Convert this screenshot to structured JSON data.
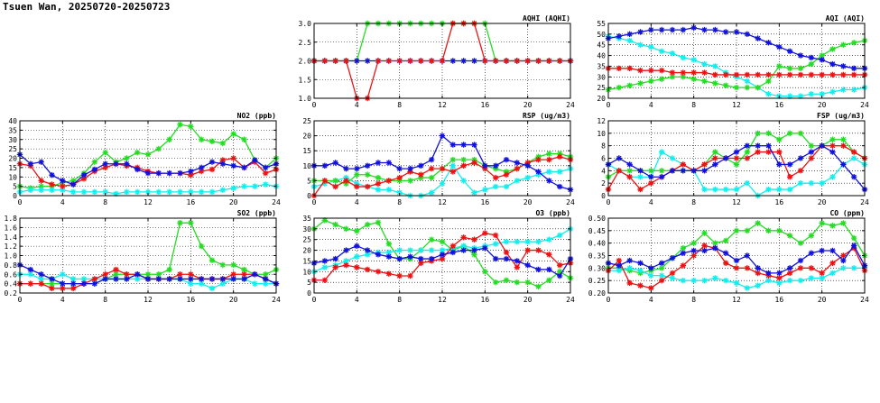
{
  "page": {
    "title": "Tsuen Wan, 20250720-20250723"
  },
  "series_colors": {
    "green": "#22dd22",
    "red": "#ee1111",
    "blue": "#1111dd",
    "cyan": "#11eeee"
  },
  "chart_data": [
    {
      "id": "aqhi",
      "type": "line",
      "title": "AQHI (AQHI)",
      "xlim": [
        0,
        24
      ],
      "xticks": [
        0,
        4,
        8,
        12,
        16,
        20,
        24
      ],
      "ylim": [
        1,
        3
      ],
      "yticks": [
        "1.0",
        "1.5",
        "2.0",
        "2.5",
        "3.0"
      ],
      "grid": true,
      "series": [
        {
          "color": "green",
          "values": [
            2,
            2,
            2,
            2,
            2,
            3,
            3,
            3,
            3,
            3,
            3,
            3,
            3,
            3,
            3,
            3,
            3,
            2,
            2,
            2,
            2,
            2,
            2,
            2,
            2
          ]
        },
        {
          "color": "blue",
          "values": [
            2,
            2,
            2,
            2,
            2,
            2,
            2,
            2,
            2,
            2,
            2,
            2,
            2,
            2,
            2,
            2,
            2,
            2,
            2,
            2,
            2,
            2,
            2,
            2,
            2
          ]
        },
        {
          "color": "red",
          "values": [
            2,
            2,
            2,
            2,
            1,
            1,
            2,
            2,
            2,
            2,
            2,
            2,
            2,
            3,
            3,
            3,
            2,
            2,
            2,
            2,
            2,
            2,
            2,
            2,
            2
          ]
        }
      ]
    },
    {
      "id": "aqi",
      "type": "line",
      "title": "AQI (AQI)",
      "xlim": [
        0,
        24
      ],
      "xticks": [
        0,
        4,
        8,
        12,
        16,
        20,
        24
      ],
      "ylim": [
        20,
        55
      ],
      "yticks": [
        "20",
        "25",
        "30",
        "35",
        "40",
        "45",
        "50",
        "55"
      ],
      "grid": true,
      "series": [
        {
          "color": "cyan",
          "values": [
            49,
            48,
            47,
            45,
            44,
            42,
            41,
            39,
            38,
            36,
            35,
            32,
            30,
            28,
            25,
            22,
            21,
            21,
            21,
            22,
            22,
            23,
            24,
            24,
            25
          ]
        },
        {
          "color": "green",
          "values": [
            24,
            25,
            26,
            27,
            28,
            29,
            30,
            30,
            29,
            28,
            27,
            26,
            25,
            25,
            25,
            28,
            35,
            34,
            34,
            36,
            40,
            43,
            45,
            46,
            47
          ]
        },
        {
          "color": "red",
          "values": [
            34,
            34,
            34,
            33,
            33,
            33,
            32,
            32,
            32,
            32,
            31,
            31,
            31,
            31,
            31,
            31,
            31,
            31,
            31,
            31,
            31,
            31,
            31,
            31,
            31
          ]
        },
        {
          "color": "blue",
          "values": [
            48,
            49,
            50,
            51,
            52,
            52,
            52,
            52,
            53,
            52,
            52,
            51,
            51,
            50,
            48,
            46,
            44,
            42,
            40,
            39,
            38,
            36,
            35,
            34,
            34
          ]
        }
      ]
    },
    {
      "id": "no2",
      "type": "line",
      "title": "NO2 (ppb)",
      "xlim": [
        0,
        24
      ],
      "xticks": [
        0,
        4,
        8,
        12,
        16,
        20,
        24
      ],
      "ylim": [
        0,
        40
      ],
      "yticks": [
        "0",
        "5",
        "10",
        "15",
        "20",
        "25",
        "30",
        "35",
        "40"
      ],
      "grid": true,
      "series": [
        {
          "color": "green",
          "values": [
            5,
            4,
            5,
            5,
            7,
            8,
            12,
            18,
            23,
            18,
            20,
            23,
            22,
            25,
            30,
            38,
            37,
            30,
            29,
            28,
            33,
            30,
            19,
            15,
            20
          ]
        },
        {
          "color": "cyan",
          "values": [
            2,
            3,
            3,
            3,
            3,
            2,
            2,
            2,
            2,
            1,
            2,
            2,
            2,
            2,
            2,
            2,
            2,
            2,
            2,
            3,
            4,
            5,
            5,
            6,
            5
          ]
        },
        {
          "color": "red",
          "values": [
            17,
            16,
            8,
            6,
            5,
            6,
            9,
            13,
            15,
            17,
            16,
            15,
            13,
            12,
            12,
            12,
            11,
            13,
            14,
            19,
            20,
            15,
            18,
            12,
            14
          ]
        },
        {
          "color": "blue",
          "values": [
            22,
            17,
            18,
            11,
            8,
            6,
            11,
            14,
            17,
            17,
            17,
            14,
            12,
            12,
            12,
            12,
            13,
            15,
            18,
            17,
            16,
            15,
            19,
            15,
            17
          ]
        }
      ]
    },
    {
      "id": "rsp",
      "type": "line",
      "title": "RSP (ug/m3)",
      "xlim": [
        0,
        24
      ],
      "xticks": [
        0,
        4,
        8,
        12,
        16,
        20,
        24
      ],
      "ylim": [
        0,
        25
      ],
      "yticks": [
        "0",
        "5",
        "10",
        "15",
        "20",
        "25"
      ],
      "grid": true,
      "series": [
        {
          "color": "cyan",
          "values": [
            3,
            4,
            5,
            6,
            4,
            3,
            2,
            2,
            1,
            0,
            0,
            1,
            4,
            10,
            5,
            1,
            2,
            3,
            3,
            5,
            6,
            7,
            8,
            8,
            9
          ]
        },
        {
          "color": "green",
          "values": [
            5,
            5,
            5,
            4,
            7,
            7,
            6,
            5,
            5,
            5,
            6,
            6,
            9,
            12,
            12,
            12,
            10,
            9,
            8,
            9,
            11,
            13,
            14,
            14,
            13
          ]
        },
        {
          "color": "red",
          "values": [
            0,
            5,
            3,
            5,
            3,
            3,
            4,
            5,
            6,
            8,
            7,
            9,
            9,
            8,
            10,
            11,
            9,
            6,
            7,
            9,
            11,
            12,
            12,
            13,
            12
          ]
        },
        {
          "color": "blue",
          "values": [
            10,
            10,
            11,
            9,
            9,
            10,
            11,
            11,
            9,
            9,
            10,
            12,
            20,
            17,
            17,
            17,
            10,
            10,
            12,
            11,
            10,
            8,
            5,
            3,
            2
          ]
        }
      ]
    },
    {
      "id": "fsp",
      "type": "line",
      "title": "FSP (ug/m3)",
      "xlim": [
        0,
        24
      ],
      "xticks": [
        0,
        4,
        8,
        12,
        16,
        20,
        24
      ],
      "ylim": [
        0,
        12
      ],
      "yticks": [
        "0",
        "2",
        "4",
        "6",
        "8",
        "10",
        "12"
      ],
      "grid": true,
      "series": [
        {
          "color": "cyan",
          "values": [
            5,
            4,
            3,
            3,
            3,
            7,
            6,
            5,
            4,
            1,
            1,
            1,
            1,
            2,
            0,
            1,
            1,
            1,
            2,
            2,
            2,
            3,
            5,
            6,
            5
          ]
        },
        {
          "color": "green",
          "values": [
            3,
            4,
            4,
            4,
            4,
            4,
            4,
            4,
            4,
            5,
            7,
            6,
            5,
            7,
            10,
            10,
            9,
            10,
            10,
            8,
            8,
            9,
            9,
            7,
            6
          ]
        },
        {
          "color": "red",
          "values": [
            1,
            4,
            3,
            1,
            2,
            3,
            4,
            5,
            4,
            5,
            6,
            6,
            6,
            6,
            7,
            7,
            7,
            3,
            4,
            6,
            8,
            8,
            8,
            7,
            6
          ]
        },
        {
          "color": "blue",
          "values": [
            5,
            6,
            5,
            4,
            3,
            3,
            4,
            4,
            4,
            4,
            5,
            6,
            7,
            8,
            8,
            8,
            5,
            5,
            6,
            7,
            8,
            7,
            5,
            3,
            1
          ]
        }
      ]
    },
    {
      "id": "so2",
      "type": "line",
      "title": "SO2 (ppb)",
      "xlim": [
        0,
        24
      ],
      "xticks": [
        0,
        4,
        8,
        12,
        16,
        20,
        24
      ],
      "ylim": [
        0.2,
        1.8
      ],
      "yticks": [
        "0.2",
        "0.4",
        "0.6",
        "0.8",
        "1.0",
        "1.2",
        "1.4",
        "1.6",
        "1.8"
      ],
      "grid": true,
      "series": [
        {
          "color": "green",
          "values": [
            0.4,
            0.4,
            0.4,
            0.4,
            0.4,
            0.4,
            0.4,
            0.4,
            0.5,
            0.6,
            0.6,
            0.6,
            0.6,
            0.6,
            0.7,
            1.7,
            1.7,
            1.2,
            0.9,
            0.8,
            0.8,
            0.7,
            0.6,
            0.6,
            0.7
          ]
        },
        {
          "color": "cyan",
          "values": [
            0.6,
            0.6,
            0.5,
            0.5,
            0.6,
            0.5,
            0.5,
            0.5,
            0.5,
            0.5,
            0.5,
            0.5,
            0.5,
            0.5,
            0.5,
            0.5,
            0.4,
            0.4,
            0.3,
            0.4,
            0.5,
            0.5,
            0.4,
            0.4,
            0.4
          ]
        },
        {
          "color": "red",
          "values": [
            0.4,
            0.4,
            0.4,
            0.3,
            0.3,
            0.3,
            0.4,
            0.5,
            0.6,
            0.7,
            0.6,
            0.6,
            0.5,
            0.5,
            0.5,
            0.6,
            0.6,
            0.5,
            0.5,
            0.5,
            0.6,
            0.6,
            0.6,
            0.5,
            0.4
          ]
        },
        {
          "color": "blue",
          "values": [
            0.8,
            0.7,
            0.6,
            0.5,
            0.4,
            0.4,
            0.4,
            0.4,
            0.5,
            0.5,
            0.5,
            0.6,
            0.5,
            0.5,
            0.5,
            0.5,
            0.5,
            0.5,
            0.5,
            0.5,
            0.5,
            0.5,
            0.6,
            0.5,
            0.4
          ]
        }
      ]
    },
    {
      "id": "o3",
      "type": "line",
      "title": "O3 (ppb)",
      "xlim": [
        0,
        24
      ],
      "xticks": [
        0,
        4,
        8,
        12,
        16,
        20,
        24
      ],
      "ylim": [
        0,
        35
      ],
      "yticks": [
        "0",
        "5",
        "10",
        "15",
        "20",
        "25",
        "30",
        "35"
      ],
      "grid": true,
      "series": [
        {
          "color": "green",
          "values": [
            30,
            34,
            32,
            30,
            29,
            32,
            33,
            23,
            16,
            16,
            20,
            25,
            24,
            20,
            22,
            18,
            10,
            5,
            6,
            5,
            5,
            3,
            6,
            10,
            7
          ]
        },
        {
          "color": "cyan",
          "values": [
            10,
            12,
            13,
            15,
            17,
            18,
            19,
            19,
            20,
            20,
            20,
            20,
            20,
            21,
            22,
            21,
            22,
            23,
            24,
            24,
            24,
            24,
            25,
            27,
            30
          ]
        },
        {
          "color": "red",
          "values": [
            6,
            6,
            12,
            13,
            12,
            11,
            10,
            9,
            8,
            8,
            14,
            15,
            16,
            22,
            26,
            25,
            28,
            27,
            19,
            12,
            20,
            20,
            18,
            13,
            14
          ]
        },
        {
          "color": "blue",
          "values": [
            14,
            15,
            16,
            20,
            22,
            20,
            18,
            17,
            16,
            17,
            16,
            16,
            18,
            19,
            20,
            20,
            21,
            16,
            16,
            15,
            13,
            11,
            11,
            8,
            16
          ]
        }
      ]
    },
    {
      "id": "co",
      "type": "line",
      "title": "CO (ppm)",
      "xlim": [
        0,
        24
      ],
      "xticks": [
        0,
        4,
        8,
        12,
        16,
        20,
        24
      ],
      "ylim": [
        0.2,
        0.5
      ],
      "yticks": [
        "0.20",
        "0.25",
        "0.30",
        "0.35",
        "0.40",
        "0.45",
        "0.50"
      ],
      "grid": true,
      "series": [
        {
          "color": "green",
          "values": [
            0.3,
            0.3,
            0.29,
            0.28,
            0.29,
            0.3,
            0.34,
            0.38,
            0.4,
            0.44,
            0.4,
            0.41,
            0.45,
            0.45,
            0.48,
            0.45,
            0.45,
            0.43,
            0.4,
            0.43,
            0.48,
            0.47,
            0.48,
            0.42,
            0.35
          ]
        },
        {
          "color": "cyan",
          "values": [
            0.29,
            0.29,
            0.3,
            0.29,
            0.27,
            0.27,
            0.26,
            0.25,
            0.25,
            0.25,
            0.26,
            0.25,
            0.24,
            0.22,
            0.23,
            0.25,
            0.24,
            0.25,
            0.25,
            0.26,
            0.26,
            0.28,
            0.3,
            0.3,
            0.3
          ]
        },
        {
          "color": "red",
          "values": [
            0.29,
            0.33,
            0.24,
            0.23,
            0.22,
            0.25,
            0.28,
            0.31,
            0.35,
            0.39,
            0.38,
            0.32,
            0.3,
            0.3,
            0.28,
            0.27,
            0.26,
            0.28,
            0.3,
            0.3,
            0.28,
            0.32,
            0.35,
            0.38,
            0.29
          ]
        },
        {
          "color": "blue",
          "values": [
            0.32,
            0.31,
            0.33,
            0.32,
            0.3,
            0.32,
            0.34,
            0.36,
            0.37,
            0.37,
            0.38,
            0.36,
            0.33,
            0.35,
            0.3,
            0.28,
            0.28,
            0.3,
            0.33,
            0.36,
            0.37,
            0.37,
            0.33,
            0.39,
            0.31
          ]
        }
      ]
    }
  ]
}
